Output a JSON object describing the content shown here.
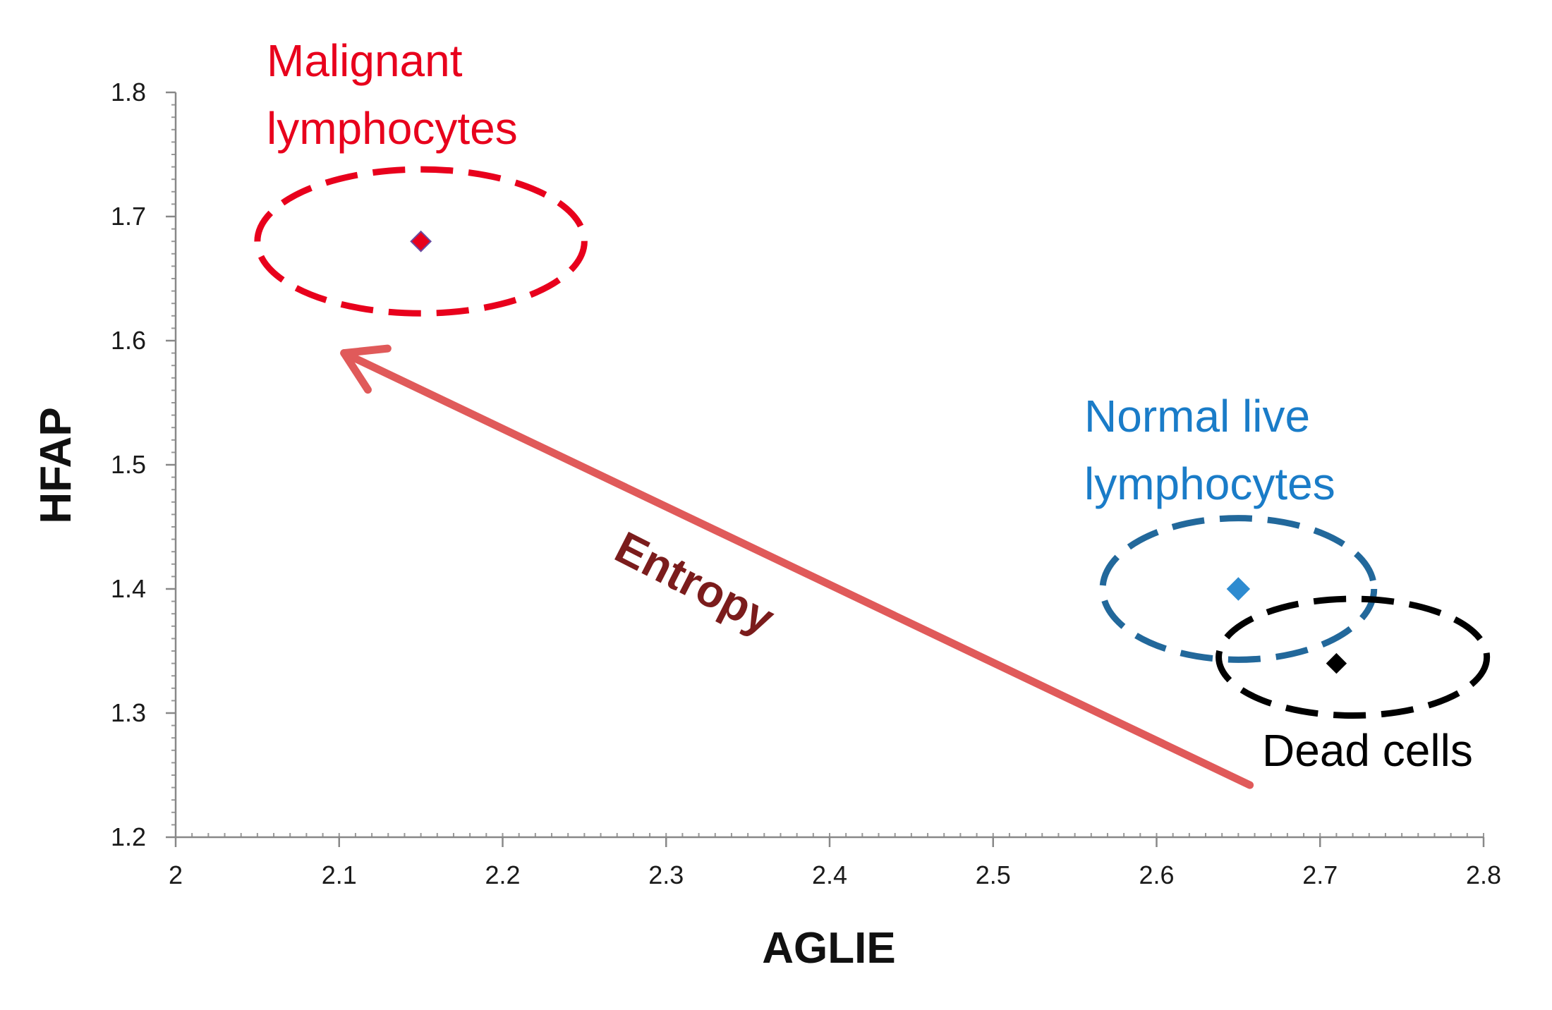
{
  "chart_data": {
    "type": "scatter",
    "xlabel": "AGLIE",
    "ylabel": "HFAP",
    "xlim": [
      2,
      2.8
    ],
    "ylim": [
      1.2,
      1.8
    ],
    "x_ticks": [
      "2",
      "2.1",
      "2.2",
      "2.3",
      "2.4",
      "2.5",
      "2.6",
      "2.7",
      "2.8"
    ],
    "y_ticks": [
      "1.2",
      "1.3",
      "1.4",
      "1.5",
      "1.6",
      "1.7",
      "1.8"
    ],
    "grid": false,
    "legend": "none",
    "series": [
      {
        "values": [
          {
            "x": 2.15,
            "y": 1.68
          }
        ],
        "color": "#e8001c",
        "marker": "diamond"
      },
      {
        "values": [
          {
            "x": 2.65,
            "y": 1.4
          }
        ],
        "color": "#2e8bd0",
        "marker": "diamond"
      },
      {
        "values": [
          {
            "x": 2.71,
            "y": 1.34
          }
        ],
        "color": "#000000",
        "marker": "diamond"
      }
    ],
    "annotations": [
      {
        "text": "Malignant",
        "color": "#e8001c"
      },
      {
        "text": "lymphocytes",
        "color": "#e8001c"
      },
      {
        "text": "Normal live",
        "color": "#1a7cc8"
      },
      {
        "text": "lymphocytes",
        "color": "#1a7cc8"
      },
      {
        "text": "Dead cells",
        "color": "#000000"
      },
      {
        "text": "Entropy",
        "color": "#7b1c1c"
      }
    ],
    "clusters": [
      {
        "cx": 2.15,
        "cy": 1.68,
        "rx": 0.1,
        "ry": 0.058,
        "color": "#e8001c"
      },
      {
        "cx": 2.65,
        "cy": 1.4,
        "rx": 0.083,
        "ry": 0.057,
        "color": "#22689b"
      },
      {
        "cx": 2.72,
        "cy": 1.345,
        "rx": 0.082,
        "ry": 0.047,
        "color": "#000000"
      }
    ],
    "arrow": {
      "from": [
        2.657,
        1.242
      ],
      "to": [
        2.103,
        1.59
      ],
      "color": "#e05a5a"
    }
  }
}
